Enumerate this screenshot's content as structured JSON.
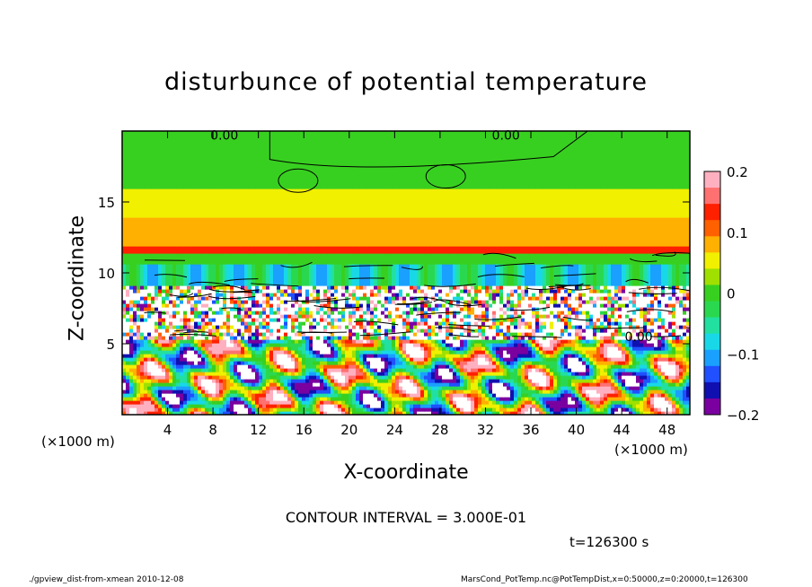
{
  "chart_data": {
    "type": "heatmap",
    "title": "disturbunce of potential temperature",
    "xlabel": "X-coordinate",
    "ylabel": "Z-coordinate",
    "x_unit": "(×1000 m)",
    "x_ticks": [
      4,
      8,
      12,
      16,
      20,
      24,
      28,
      32,
      36,
      40,
      44,
      48
    ],
    "y_ticks": [
      5,
      10,
      15
    ],
    "xlim": [
      0,
      50
    ],
    "ylim": [
      0,
      20
    ],
    "colorbar": {
      "ticks": [
        "0.2",
        "0.1",
        "0",
        "−0.1",
        "−0.2"
      ],
      "range": [
        -0.2,
        0.2
      ],
      "colors": [
        "#7a00a0",
        "#1010b0",
        "#2050ff",
        "#1aa0ff",
        "#18d8e8",
        "#22e0a0",
        "#2ad850",
        "#38d020",
        "#a0e000",
        "#f0f000",
        "#ffb000",
        "#ff6000",
        "#ff2000",
        "#ff7070",
        "#ffb0c0"
      ]
    },
    "contour_labels": [
      "0.00",
      "0.00",
      "0.00"
    ],
    "contour_interval": "CONTOUR INTERVAL = 3.000E-01",
    "time": "t=126300 s",
    "footer_left": "./gpview_dist-from-xmean  2010-12-08",
    "footer_right": "MarsCond_PotTemp.nc@PotTempDist,x=0:50000,z=0:20000,t=126300"
  }
}
